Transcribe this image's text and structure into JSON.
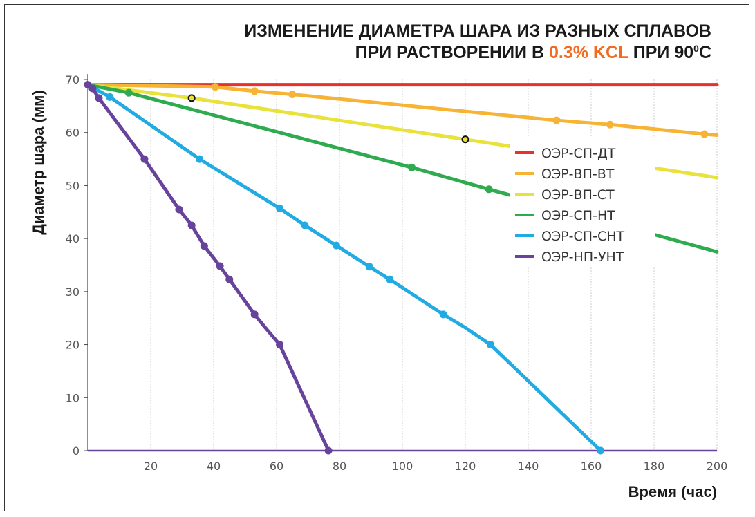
{
  "chart_data": {
    "type": "line",
    "title_line1": "ИЗМЕНЕНИЕ ДИАМЕТРА ШАРА ИЗ РАЗНЫХ СПЛАВОВ",
    "title_line2_pre": "ПРИ РАСТВОРЕНИИ В ",
    "title_line2_highlight": "0.3% KCL",
    "title_line2_post": " ПРИ 90",
    "title_line2_sup": "0",
    "title_line2_end": "C",
    "highlight_color": "#f26b21",
    "xlabel": "Время (час)",
    "ylabel": "Диаметр шара (мм)",
    "xlim": [
      0,
      200
    ],
    "ylim": [
      0,
      70
    ],
    "x_ticks": [
      20,
      40,
      60,
      80,
      100,
      120,
      140,
      160,
      180,
      200
    ],
    "y_ticks": [
      0,
      10,
      20,
      30,
      40,
      50,
      60,
      70
    ],
    "grid": "vertical",
    "legend_position": "right",
    "series": [
      {
        "name": "ОЭР-СП-ДТ",
        "color": "#e8312a",
        "x": [
          0,
          200
        ],
        "y": [
          69,
          69
        ],
        "markers": []
      },
      {
        "name": "ОЭР-ВП-ВТ",
        "color": "#f7b334",
        "x": [
          0,
          40.5,
          53,
          65,
          149,
          166,
          196,
          200
        ],
        "y": [
          69,
          68.6,
          67.8,
          67.2,
          62.3,
          61.5,
          59.7,
          59.5
        ],
        "markers": [
          [
            40.5,
            68.6
          ],
          [
            53,
            67.8
          ],
          [
            65,
            67.2
          ],
          [
            149,
            62.3
          ],
          [
            166,
            61.5
          ],
          [
            196,
            59.7
          ]
        ]
      },
      {
        "name": "ОЭР-ВП-СТ",
        "color": "#e8e23a",
        "x": [
          0,
          33,
          120,
          200
        ],
        "y": [
          69,
          66.5,
          58.7,
          51.5
        ],
        "markers": [],
        "open_markers": [
          [
            33,
            66.5
          ],
          [
            120,
            58.7
          ]
        ]
      },
      {
        "name": "ОЭР-СП-НТ",
        "color": "#2eab4e",
        "x": [
          0,
          13,
          103,
          127.5,
          200
        ],
        "y": [
          69,
          67.5,
          53.4,
          49.3,
          37.5
        ],
        "markers": [
          [
            13,
            67.5
          ],
          [
            103,
            53.4
          ],
          [
            127.5,
            49.3
          ]
        ]
      },
      {
        "name": "ОЭР-СП-СНТ",
        "color": "#21abe2",
        "x": [
          0,
          7,
          35.5,
          61,
          69,
          79,
          89.5,
          96,
          113,
          120,
          128,
          163
        ],
        "y": [
          69,
          66.7,
          55,
          45.7,
          42.5,
          38.7,
          34.7,
          32.3,
          25.7,
          23.2,
          20,
          0
        ],
        "markers": [
          [
            7,
            66.7
          ],
          [
            35.5,
            55
          ],
          [
            61,
            45.7
          ],
          [
            69,
            42.5
          ],
          [
            79,
            38.7
          ],
          [
            89.5,
            34.7
          ],
          [
            96,
            32.3
          ],
          [
            113,
            25.7
          ],
          [
            128,
            20
          ],
          [
            163,
            0
          ]
        ]
      },
      {
        "name": "ОЭР-НП-УНТ",
        "color": "#67439b",
        "x": [
          0,
          1.5,
          3.5,
          18,
          29,
          33,
          37,
          42,
          45,
          53,
          56,
          61,
          76.5
        ],
        "y": [
          69,
          68.3,
          66.5,
          55,
          45.5,
          42.5,
          38.6,
          34.8,
          32.3,
          25.7,
          23.5,
          20,
          0
        ],
        "markers": [
          [
            0,
            69
          ],
          [
            1.5,
            68.3
          ],
          [
            3.5,
            66.5
          ],
          [
            18,
            55
          ],
          [
            29,
            45.5
          ],
          [
            33,
            42.5
          ],
          [
            37,
            38.6
          ],
          [
            42,
            34.8
          ],
          [
            45,
            32.3
          ],
          [
            53,
            25.7
          ],
          [
            61,
            20
          ],
          [
            76.5,
            0
          ]
        ]
      }
    ]
  }
}
